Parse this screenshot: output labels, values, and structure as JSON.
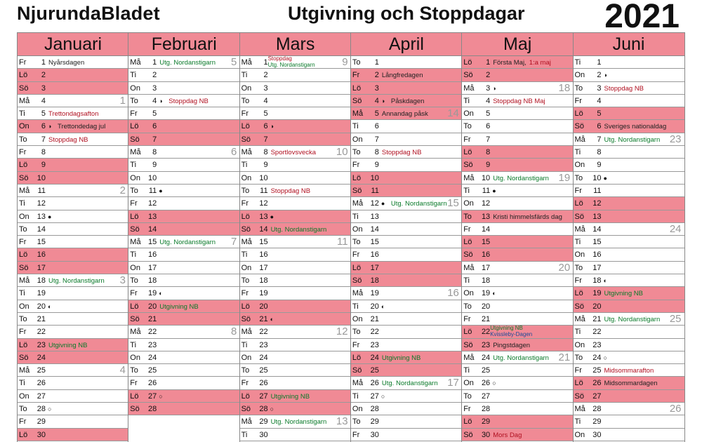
{
  "header": {
    "brand": "NjurundaBladet",
    "title": "Utgivning och Stoppdagar",
    "year": "2021"
  },
  "months": [
    {
      "name": "Januari",
      "days": [
        {
          "d": "Fr",
          "n": "1",
          "t": "Nyårsdagen",
          "c": "dark",
          "w": false
        },
        {
          "d": "Lö",
          "n": "2",
          "w": true
        },
        {
          "d": "Sö",
          "n": "3",
          "w": true
        },
        {
          "d": "Må",
          "n": "4",
          "wk": "1"
        },
        {
          "d": "Ti",
          "n": "5",
          "t": "Trettondagsafton",
          "c": "red"
        },
        {
          "d": "On",
          "n": "6",
          "m": "◑",
          "t": "Trettondedag jul",
          "c": "dark",
          "w": true
        },
        {
          "d": "To",
          "n": "7",
          "t": "Stoppdag NB",
          "c": "red"
        },
        {
          "d": "Fr",
          "n": "8"
        },
        {
          "d": "Lö",
          "n": "9",
          "w": true
        },
        {
          "d": "Sö",
          "n": "10",
          "w": true
        },
        {
          "d": "Må",
          "n": "11",
          "wk": "2"
        },
        {
          "d": "Ti",
          "n": "12"
        },
        {
          "d": "On",
          "n": "13",
          "m": "●"
        },
        {
          "d": "To",
          "n": "14"
        },
        {
          "d": "Fr",
          "n": "15"
        },
        {
          "d": "Lö",
          "n": "16",
          "w": true
        },
        {
          "d": "Sö",
          "n": "17",
          "w": true
        },
        {
          "d": "Må",
          "n": "18",
          "t": "Utg. Nordanstigarn",
          "c": "green",
          "wk": "3"
        },
        {
          "d": "Ti",
          "n": "19"
        },
        {
          "d": "On",
          "n": "20",
          "m": "◐"
        },
        {
          "d": "To",
          "n": "21"
        },
        {
          "d": "Fr",
          "n": "22"
        },
        {
          "d": "Lö",
          "n": "23",
          "t": "Utgivning NB",
          "c": "green",
          "w": true
        },
        {
          "d": "Sö",
          "n": "24",
          "w": true
        },
        {
          "d": "Må",
          "n": "25",
          "wk": "4"
        },
        {
          "d": "Ti",
          "n": "26"
        },
        {
          "d": "On",
          "n": "27"
        },
        {
          "d": "To",
          "n": "28",
          "m": "○"
        },
        {
          "d": "Fr",
          "n": "29"
        },
        {
          "d": "Lö",
          "n": "30",
          "w": true
        }
      ]
    },
    {
      "name": "Februari",
      "days": [
        {
          "d": "Må",
          "n": "1",
          "t": "Utg. Nordanstigarn",
          "c": "green",
          "wk": "5"
        },
        {
          "d": "Ti",
          "n": "2"
        },
        {
          "d": "On",
          "n": "3"
        },
        {
          "d": "To",
          "n": "4",
          "m": "◑",
          "t": "Stoppdag NB",
          "c": "red"
        },
        {
          "d": "Fr",
          "n": "5"
        },
        {
          "d": "Lö",
          "n": "6",
          "w": true
        },
        {
          "d": "Sö",
          "n": "7",
          "w": true
        },
        {
          "d": "Må",
          "n": "8",
          "wk": "6"
        },
        {
          "d": "Ti",
          "n": "9"
        },
        {
          "d": "On",
          "n": "10"
        },
        {
          "d": "To",
          "n": "11",
          "m": "●"
        },
        {
          "d": "Fr",
          "n": "12"
        },
        {
          "d": "Lö",
          "n": "13",
          "w": true
        },
        {
          "d": "Sö",
          "n": "14",
          "w": true
        },
        {
          "d": "Må",
          "n": "15",
          "t": "Utg. Nordanstigarn",
          "c": "green",
          "wk": "7"
        },
        {
          "d": "Ti",
          "n": "16"
        },
        {
          "d": "On",
          "n": "17"
        },
        {
          "d": "To",
          "n": "18"
        },
        {
          "d": "Fr",
          "n": "19",
          "m": "◐"
        },
        {
          "d": "Lö",
          "n": "20",
          "t": "Utgivning NB",
          "c": "green",
          "w": true
        },
        {
          "d": "Sö",
          "n": "21",
          "w": true
        },
        {
          "d": "Må",
          "n": "22",
          "wk": "8"
        },
        {
          "d": "Ti",
          "n": "23"
        },
        {
          "d": "On",
          "n": "24"
        },
        {
          "d": "To",
          "n": "25"
        },
        {
          "d": "Fr",
          "n": "26"
        },
        {
          "d": "Lö",
          "n": "27",
          "m": "○",
          "w": true
        },
        {
          "d": "Sö",
          "n": "28",
          "w": true
        }
      ]
    },
    {
      "name": "Mars",
      "days": [
        {
          "d": "Må",
          "n": "1",
          "t2a": "Stoppdag",
          "t2b": "Utg. Nordanstigarn",
          "wk": "9"
        },
        {
          "d": "Ti",
          "n": "2"
        },
        {
          "d": "On",
          "n": "3"
        },
        {
          "d": "To",
          "n": "4"
        },
        {
          "d": "Fr",
          "n": "5"
        },
        {
          "d": "Lö",
          "n": "6",
          "m": "◑",
          "w": true
        },
        {
          "d": "Sö",
          "n": "7",
          "w": true
        },
        {
          "d": "Må",
          "n": "8",
          "t": "Sportlovsvecka",
          "c": "red",
          "wk": "10"
        },
        {
          "d": "Ti",
          "n": "9"
        },
        {
          "d": "On",
          "n": "10"
        },
        {
          "d": "To",
          "n": "11",
          "t": "Stoppdag NB",
          "c": "red"
        },
        {
          "d": "Fr",
          "n": "12"
        },
        {
          "d": "Lö",
          "n": "13",
          "m": "●",
          "w": true
        },
        {
          "d": "Sö",
          "n": "14",
          "t": "Utg. Nordanstigarn",
          "c": "green",
          "w": true
        },
        {
          "d": "Må",
          "n": "15",
          "wk": "11"
        },
        {
          "d": "Ti",
          "n": "16"
        },
        {
          "d": "On",
          "n": "17"
        },
        {
          "d": "To",
          "n": "18"
        },
        {
          "d": "Fr",
          "n": "19"
        },
        {
          "d": "Lö",
          "n": "20",
          "w": true
        },
        {
          "d": "Sö",
          "n": "21",
          "m": "◐",
          "w": true
        },
        {
          "d": "Må",
          "n": "22",
          "wk": "12"
        },
        {
          "d": "Ti",
          "n": "23"
        },
        {
          "d": "On",
          "n": "24"
        },
        {
          "d": "To",
          "n": "25"
        },
        {
          "d": "Fr",
          "n": "26"
        },
        {
          "d": "Lö",
          "n": "27",
          "t": "Utgivning  NB",
          "c": "green",
          "w": true
        },
        {
          "d": "Sö",
          "n": "28",
          "m": "○",
          "w": true
        },
        {
          "d": "Må",
          "n": "29",
          "t": "Utg. Nordanstigarn",
          "c": "green",
          "wk": "13"
        },
        {
          "d": "Ti",
          "n": "30"
        }
      ]
    },
    {
      "name": "April",
      "days": [
        {
          "d": "To",
          "n": "1"
        },
        {
          "d": "Fr",
          "n": "2",
          "t": "Långfredagen",
          "c": "dark",
          "w": true
        },
        {
          "d": "Lö",
          "n": "3",
          "w": true
        },
        {
          "d": "Sö",
          "n": "4",
          "m": "◑",
          "t": "Påskdagen",
          "c": "dark",
          "w": true
        },
        {
          "d": "Må",
          "n": "5",
          "t": "Annandag påsk",
          "c": "dark",
          "w": true,
          "wk": "14"
        },
        {
          "d": "Ti",
          "n": "6"
        },
        {
          "d": "On",
          "n": "7"
        },
        {
          "d": "To",
          "n": "8",
          "t": "Stoppdag NB",
          "c": "red"
        },
        {
          "d": "Fr",
          "n": "9"
        },
        {
          "d": "Lö",
          "n": "10",
          "w": true
        },
        {
          "d": "Sö",
          "n": "11",
          "w": true
        },
        {
          "d": "Må",
          "n": "12",
          "m": "●",
          "t": "Utg. Nordanstigarn",
          "c": "green",
          "wk": "15"
        },
        {
          "d": "Ti",
          "n": "13"
        },
        {
          "d": "On",
          "n": "14"
        },
        {
          "d": "To",
          "n": "15"
        },
        {
          "d": "Fr",
          "n": "16"
        },
        {
          "d": "Lö",
          "n": "17",
          "w": true
        },
        {
          "d": "Sö",
          "n": "18",
          "w": true
        },
        {
          "d": "Må",
          "n": "19",
          "wk": "16"
        },
        {
          "d": "Ti",
          "n": "20",
          "m": "◐"
        },
        {
          "d": "On",
          "n": "21"
        },
        {
          "d": "To",
          "n": "22"
        },
        {
          "d": "Fr",
          "n": "23"
        },
        {
          "d": "Lö",
          "n": "24",
          "t": "Utgivning NB",
          "c": "green",
          "w": true
        },
        {
          "d": "Sö",
          "n": "25",
          "w": true
        },
        {
          "d": "Må",
          "n": "26",
          "t": "Utg. Nordanstigarn",
          "c": "green",
          "wk": "17"
        },
        {
          "d": "Ti",
          "n": "27",
          "m": "○"
        },
        {
          "d": "On",
          "n": "28"
        },
        {
          "d": "To",
          "n": "29"
        },
        {
          "d": "Fr",
          "n": "30"
        }
      ]
    },
    {
      "name": "Maj",
      "days": [
        {
          "d": "Lö",
          "n": "1",
          "t": "Första Maj,",
          "t3": "1:a maj",
          "c": "dark",
          "w": true
        },
        {
          "d": "Sö",
          "n": "2",
          "w": true
        },
        {
          "d": "Må",
          "n": "3",
          "m": "◑",
          "wk": "18"
        },
        {
          "d": "Ti",
          "n": "4",
          "t": "Stoppdag NB Maj",
          "c": "red"
        },
        {
          "d": "On",
          "n": "5"
        },
        {
          "d": "To",
          "n": "6"
        },
        {
          "d": "Fr",
          "n": "7"
        },
        {
          "d": "Lö",
          "n": "8",
          "w": true
        },
        {
          "d": "Sö",
          "n": "9",
          "w": true
        },
        {
          "d": "Må",
          "n": "10",
          "t": "Utg. Nordanstigarn",
          "c": "green",
          "wk": "19"
        },
        {
          "d": "Ti",
          "n": "11",
          "m": "●"
        },
        {
          "d": "On",
          "n": "12"
        },
        {
          "d": "To",
          "n": "13",
          "t": "Kristi himmelsfärds dag",
          "c": "dark",
          "w": true
        },
        {
          "d": "Fr",
          "n": "14"
        },
        {
          "d": "Lö",
          "n": "15",
          "w": true
        },
        {
          "d": "Sö",
          "n": "16",
          "w": true
        },
        {
          "d": "Må",
          "n": "17",
          "wk": "20"
        },
        {
          "d": "Ti",
          "n": "18"
        },
        {
          "d": "On",
          "n": "19",
          "m": "◐"
        },
        {
          "d": "To",
          "n": "20"
        },
        {
          "d": "Fr",
          "n": "21"
        },
        {
          "d": "Lö",
          "n": "22",
          "t2a": "Utgivning NB",
          "t2b": "Kvissleby-Dagen",
          "w": true
        },
        {
          "d": "Sö",
          "n": "23",
          "t": "Pingstdagen",
          "c": "dark",
          "w": true
        },
        {
          "d": "Må",
          "n": "24",
          "t": "Utg. Nordanstigarn",
          "c": "green",
          "wk": "21"
        },
        {
          "d": "Ti",
          "n": "25"
        },
        {
          "d": "On",
          "n": "26",
          "m": "○"
        },
        {
          "d": "To",
          "n": "27"
        },
        {
          "d": "Fr",
          "n": "28"
        },
        {
          "d": "Lö",
          "n": "29",
          "w": true
        },
        {
          "d": "Sö",
          "n": "30",
          "t": "Mors Dag",
          "c": "red",
          "w": true
        }
      ]
    },
    {
      "name": "Juni",
      "days": [
        {
          "d": "Ti",
          "n": "1"
        },
        {
          "d": "On",
          "n": "2",
          "m": "◑"
        },
        {
          "d": "To",
          "n": "3",
          "t": "Stoppdag NB",
          "c": "red"
        },
        {
          "d": "Fr",
          "n": "4"
        },
        {
          "d": "Lö",
          "n": "5",
          "w": true
        },
        {
          "d": "Sö",
          "n": "6",
          "t": "Sveriges nationaldag",
          "c": "dark",
          "w": true
        },
        {
          "d": "Må",
          "n": "7",
          "t": "Utg. Nordanstigarn",
          "c": "green",
          "wk": "23"
        },
        {
          "d": "Ti",
          "n": "8"
        },
        {
          "d": "On",
          "n": "9"
        },
        {
          "d": "To",
          "n": "10",
          "m": "●"
        },
        {
          "d": "Fr",
          "n": "11"
        },
        {
          "d": "Lö",
          "n": "12",
          "w": true
        },
        {
          "d": "Sö",
          "n": "13",
          "w": true
        },
        {
          "d": "Må",
          "n": "14",
          "wk": "24"
        },
        {
          "d": "Ti",
          "n": "15"
        },
        {
          "d": "On",
          "n": "16"
        },
        {
          "d": "To",
          "n": "17"
        },
        {
          "d": "Fr",
          "n": "18",
          "m": "◐"
        },
        {
          "d": "Lö",
          "n": "19",
          "t": "Utgivning NB",
          "c": "green",
          "w": true
        },
        {
          "d": "Sö",
          "n": "20",
          "w": true
        },
        {
          "d": "Må",
          "n": "21",
          "t": "Utg. Nordanstigarn",
          "c": "green",
          "wk": "25"
        },
        {
          "d": "Ti",
          "n": "22"
        },
        {
          "d": "On",
          "n": "23"
        },
        {
          "d": "To",
          "n": "24",
          "m": "○"
        },
        {
          "d": "Fr",
          "n": "25",
          "t": "Midsommarafton",
          "c": "red"
        },
        {
          "d": "Lö",
          "n": "26",
          "t": "Midsommardagen",
          "c": "dark",
          "w": true
        },
        {
          "d": "Sö",
          "n": "27",
          "w": true
        },
        {
          "d": "Må",
          "n": "28",
          "wk": "26"
        },
        {
          "d": "Ti",
          "n": "29"
        },
        {
          "d": "On",
          "n": "30"
        }
      ]
    }
  ],
  "colors": {
    "weekend": "#f08a95",
    "stop": "#b01020",
    "publish": "#0a7a2a"
  }
}
